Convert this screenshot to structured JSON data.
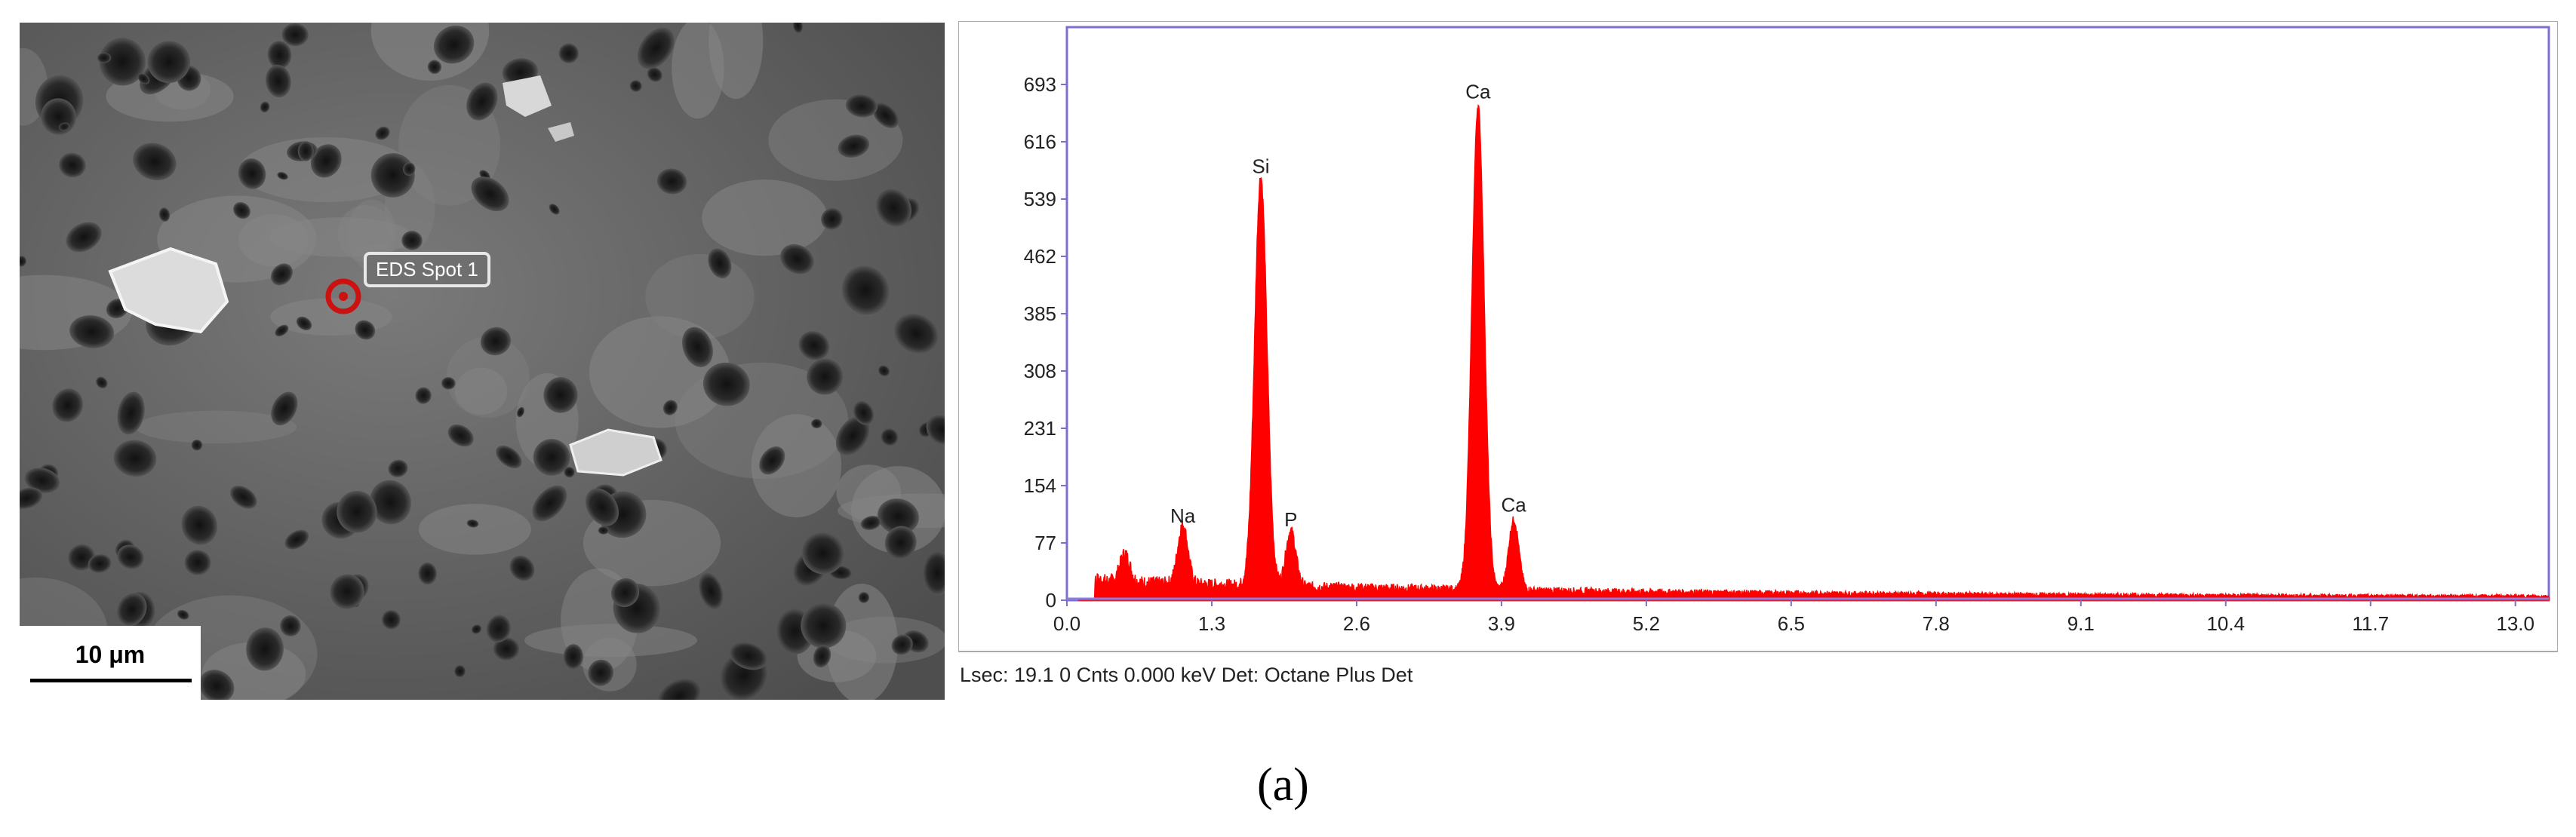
{
  "sem_image": {
    "scale_bar_label": "10 μm",
    "spot_label": "EDS Spot 1",
    "spot_marker_color": "#cc1111"
  },
  "spectrum_status": "Lsec: 19.1 0 Cnts  0.000 keV Det: Octane Plus Det",
  "caption": "(a)",
  "colors": {
    "spectrum_fill": "#ff0000",
    "frame": "#7b6fd0",
    "baseline": "#8a7fe0"
  },
  "chart_data": {
    "type": "area",
    "title": "",
    "xlabel": "",
    "ylabel": "",
    "xlim": [
      0,
      13.3
    ],
    "ylim": [
      0,
      770
    ],
    "x_ticks": [
      "0.0",
      "1.3",
      "2.6",
      "3.9",
      "5.2",
      "6.5",
      "7.8",
      "9.1",
      "10.4",
      "11.7",
      "13.0"
    ],
    "y_ticks": [
      "0",
      "77",
      "154",
      "231",
      "308",
      "385",
      "462",
      "539",
      "616",
      "693"
    ],
    "peaks": [
      {
        "label": "",
        "energy_kev": 0.28,
        "counts": 12
      },
      {
        "label": "",
        "energy_kev": 0.52,
        "counts": 48
      },
      {
        "label": "Na",
        "energy_kev": 1.04,
        "counts": 90
      },
      {
        "label": "Si",
        "energy_kev": 1.74,
        "counts": 560
      },
      {
        "label": "P",
        "energy_kev": 2.01,
        "counts": 85
      },
      {
        "label": "Ca",
        "energy_kev": 3.69,
        "counts": 660
      },
      {
        "label": "Ca",
        "energy_kev": 4.01,
        "counts": 105
      }
    ],
    "grid": false,
    "grid_note": "none"
  }
}
